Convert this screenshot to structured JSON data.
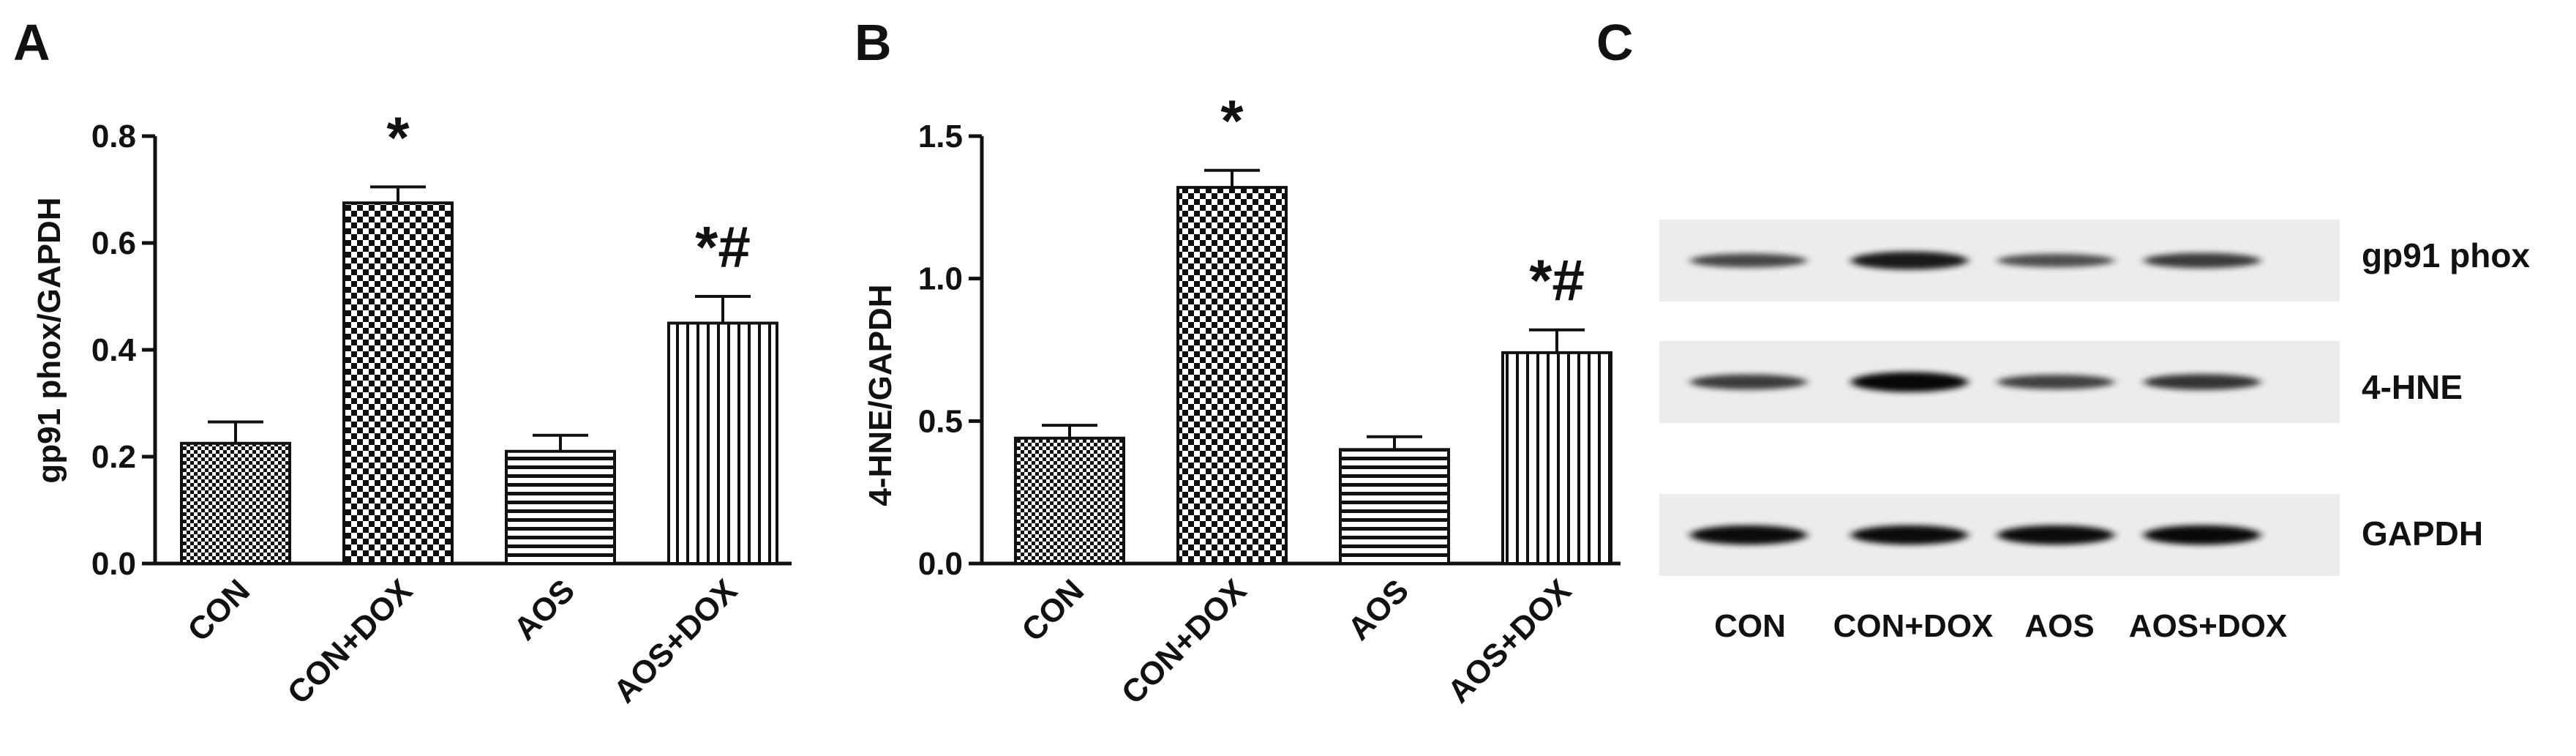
{
  "panels": {
    "A": {
      "letter": "A"
    },
    "B": {
      "letter": "B"
    },
    "C": {
      "letter": "C"
    }
  },
  "chart_data": [
    {
      "panel": "A",
      "type": "bar",
      "ylabel": "gp91 phox/GAPDH",
      "xlabel": "",
      "ylim": [
        0,
        0.8
      ],
      "yticks": [
        "0.0",
        "0.2",
        "0.4",
        "0.6",
        "0.8"
      ],
      "categories": [
        "CON",
        "CON+DOX",
        "AOS",
        "AOS+DOX"
      ],
      "values": [
        0.225,
        0.675,
        0.21,
        0.45
      ],
      "errors": [
        0.04,
        0.03,
        0.03,
        0.05
      ],
      "significance": [
        "",
        "*",
        "",
        "*#"
      ],
      "patterns": [
        "checker-fine",
        "checker-coarse",
        "horizontal-lines",
        "vertical-lines"
      ]
    },
    {
      "panel": "B",
      "type": "bar",
      "ylabel": "4-HNE/GAPDH",
      "xlabel": "",
      "ylim": [
        0,
        1.5
      ],
      "yticks": [
        "0.0",
        "0.5",
        "1.0",
        "1.5"
      ],
      "categories": [
        "CON",
        "CON+DOX",
        "AOS",
        "AOS+DOX"
      ],
      "values": [
        0.44,
        1.32,
        0.4,
        0.74
      ],
      "errors": [
        0.045,
        0.06,
        0.045,
        0.08
      ],
      "significance": [
        "",
        "*",
        "",
        "*#"
      ],
      "patterns": [
        "checker-fine",
        "checker-coarse",
        "horizontal-lines",
        "vertical-lines"
      ]
    }
  ],
  "blot": {
    "rows": [
      "gp91 phox",
      "4-HNE",
      "GAPDH"
    ],
    "lanes": [
      "CON",
      "CON+DOX",
      "AOS",
      "AOS+DOX"
    ],
    "intensities": [
      [
        0.45,
        0.8,
        0.4,
        0.55
      ],
      [
        0.55,
        0.95,
        0.5,
        0.6
      ],
      [
        0.9,
        0.9,
        0.9,
        0.92
      ]
    ]
  }
}
